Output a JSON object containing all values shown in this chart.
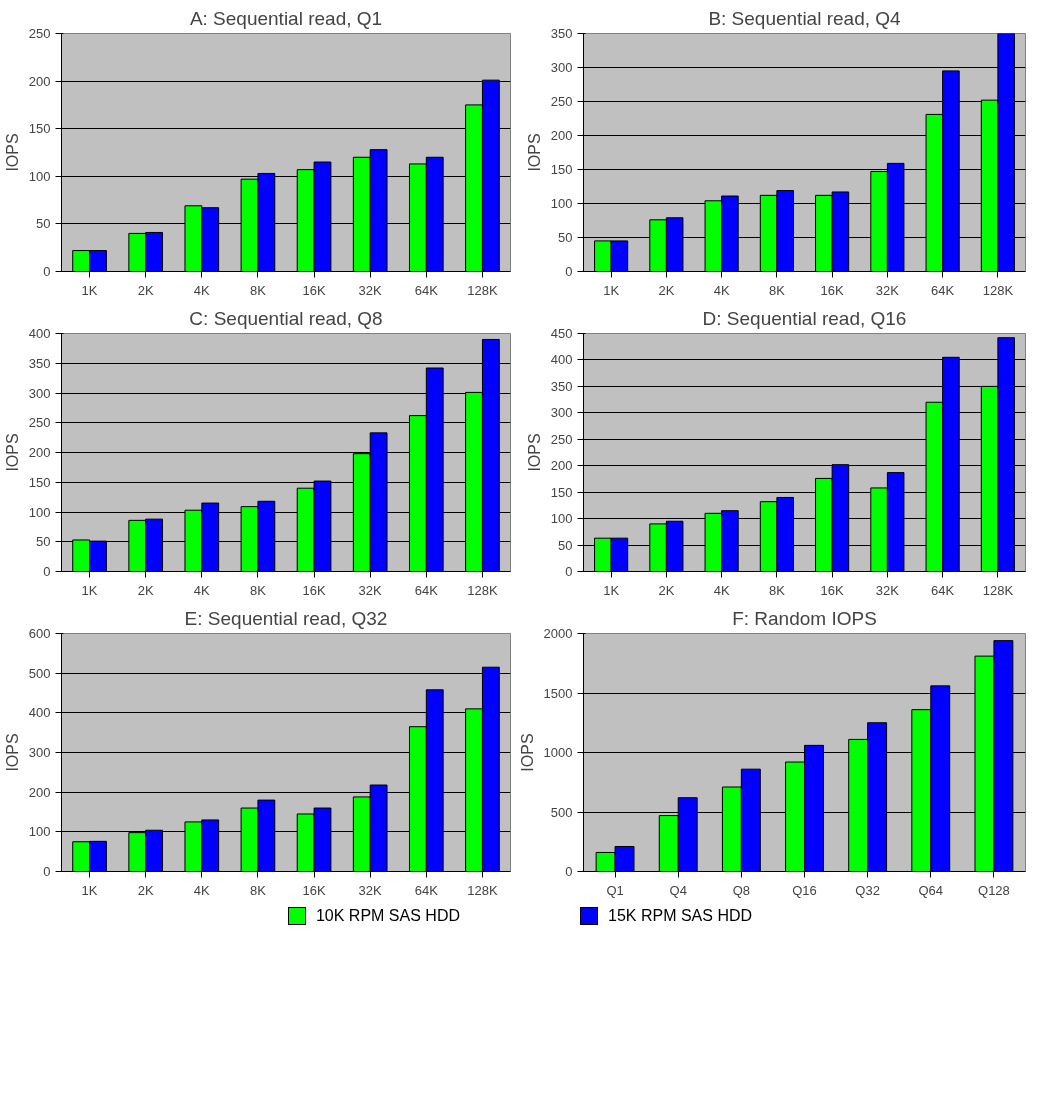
{
  "chart_data": [
    {
      "type": "bar",
      "title": "A: Sequential read, Q1",
      "ylabel": "IOPS",
      "categories": [
        "1K",
        "2K",
        "4K",
        "8K",
        "16K",
        "32K",
        "64K",
        "128K"
      ],
      "ylim": [
        0,
        250
      ],
      "yticks": [
        0,
        50,
        100,
        150,
        200,
        250
      ],
      "grid": "y",
      "series": [
        {
          "color": "#00ff00",
          "values": [
            22,
            40,
            69,
            97,
            107,
            120,
            113,
            175
          ]
        },
        {
          "color": "#0000ff",
          "values": [
            22,
            41,
            67,
            103,
            115,
            128,
            120,
            201
          ]
        }
      ]
    },
    {
      "type": "bar",
      "title": "B: Sequential read, Q4",
      "ylabel": "IOPS",
      "categories": [
        "1K",
        "2K",
        "4K",
        "8K",
        "16K",
        "32K",
        "64K",
        "128K"
      ],
      "ylim": [
        0,
        350
      ],
      "yticks": [
        0,
        50,
        100,
        150,
        200,
        250,
        300,
        350
      ],
      "grid": "y",
      "series": [
        {
          "color": "#00ff00",
          "values": [
            45,
            76,
            104,
            112,
            112,
            147,
            231,
            252
          ]
        },
        {
          "color": "#0000ff",
          "values": [
            45,
            79,
            111,
            119,
            117,
            159,
            295,
            350
          ]
        }
      ]
    },
    {
      "type": "bar",
      "title": "C: Sequential read, Q8",
      "ylabel": "IOPS",
      "categories": [
        "1K",
        "2K",
        "4K",
        "8K",
        "16K",
        "32K",
        "64K",
        "128K"
      ],
      "ylim": [
        0,
        400
      ],
      "yticks": [
        0,
        50,
        100,
        150,
        200,
        250,
        300,
        350,
        400
      ],
      "grid": "y",
      "series": [
        {
          "color": "#00ff00",
          "values": [
            53,
            86,
            103,
            109,
            140,
            198,
            262,
            301
          ]
        },
        {
          "color": "#0000ff",
          "values": [
            51,
            88,
            115,
            118,
            152,
            233,
            342,
            390
          ]
        }
      ]
    },
    {
      "type": "bar",
      "title": "D: Sequential read, Q16",
      "ylabel": "IOPS",
      "categories": [
        "1K",
        "2K",
        "4K",
        "8K",
        "16K",
        "32K",
        "64K",
        "128K"
      ],
      "ylim": [
        0,
        450
      ],
      "yticks": [
        0,
        50,
        100,
        150,
        200,
        250,
        300,
        350,
        400,
        450
      ],
      "grid": "y",
      "series": [
        {
          "color": "#00ff00",
          "values": [
            63,
            90,
            110,
            132,
            176,
            158,
            320,
            350
          ]
        },
        {
          "color": "#0000ff",
          "values": [
            63,
            95,
            115,
            140,
            202,
            187,
            405,
            442
          ]
        }
      ]
    },
    {
      "type": "bar",
      "title": "E: Sequential read, Q32",
      "ylabel": "IOPS",
      "categories": [
        "1K",
        "2K",
        "4K",
        "8K",
        "16K",
        "32K",
        "64K",
        "128K"
      ],
      "ylim": [
        0,
        600
      ],
      "yticks": [
        0,
        100,
        200,
        300,
        400,
        500,
        600
      ],
      "grid": "y",
      "series": [
        {
          "color": "#00ff00",
          "values": [
            75,
            98,
            125,
            160,
            145,
            188,
            365,
            410
          ]
        },
        {
          "color": "#0000ff",
          "values": [
            76,
            104,
            130,
            180,
            160,
            218,
            458,
            515
          ]
        }
      ]
    },
    {
      "type": "bar",
      "title": "F: Random IOPS",
      "ylabel": "IOPS",
      "categories": [
        "Q1",
        "Q4",
        "Q8",
        "Q16",
        "Q32",
        "Q64",
        "Q128"
      ],
      "ylim": [
        0,
        2000
      ],
      "yticks": [
        0,
        500,
        1000,
        1500,
        2000
      ],
      "grid": "y",
      "legend": "bottom",
      "series": [
        {
          "name": "10K RPM SAS HDD",
          "color": "#00ff00",
          "values": [
            160,
            470,
            710,
            920,
            1110,
            1360,
            1810
          ]
        },
        {
          "name": "15K RPM SAS HDD",
          "color": "#0000ff",
          "values": [
            210,
            620,
            860,
            1060,
            1250,
            1560,
            1940
          ]
        }
      ]
    }
  ]
}
